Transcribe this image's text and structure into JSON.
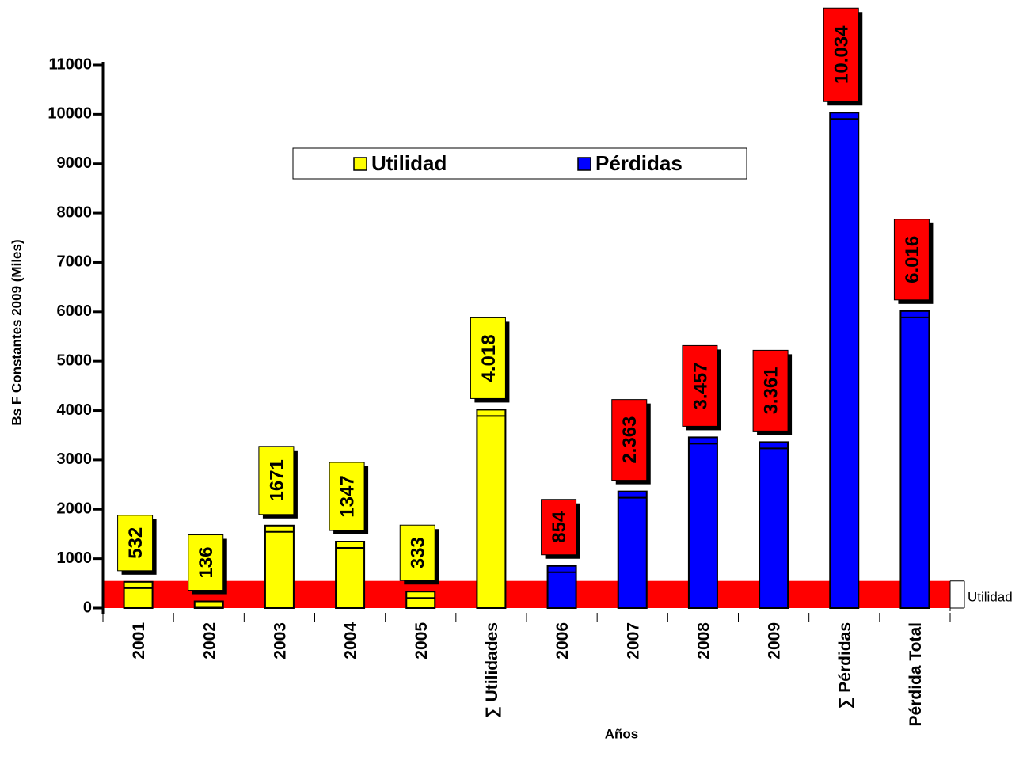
{
  "chart_data": {
    "type": "bar",
    "y_label": "Bs F Constantes 2009 (Miles)",
    "x_label": "Años",
    "categories": [
      "2001",
      "2002",
      "2003",
      "2004",
      "2005",
      "∑ Utilidades",
      "2006",
      "2007",
      "2008",
      "2009",
      "∑ Pérdidas",
      "Pérdida Total"
    ],
    "series": [
      {
        "name": "Utilidad",
        "color": "#ffff00",
        "label_color": "#ffff00",
        "values": [
          532,
          136,
          1671,
          1347,
          333,
          4018,
          null,
          null,
          null,
          null,
          null,
          null
        ],
        "value_labels": [
          "532",
          "136",
          "1671",
          "1347",
          "333",
          "4.018",
          null,
          null,
          null,
          null,
          null,
          null
        ]
      },
      {
        "name": "Pérdidas",
        "color": "#0000ff",
        "label_color": "#ff0000",
        "values": [
          null,
          null,
          null,
          null,
          null,
          null,
          854,
          2363,
          3457,
          3361,
          10034,
          6016
        ],
        "value_labels": [
          null,
          null,
          null,
          null,
          null,
          null,
          "854",
          "2.363",
          "3.457",
          "3.361",
          "10.034",
          "6.016"
        ]
      }
    ],
    "reference_band": {
      "label": "Utilidad",
      "from": 0,
      "to": 550,
      "color": "#ff0000"
    },
    "ylim": [
      0,
      11000
    ],
    "yticks": [
      0,
      1000,
      2000,
      3000,
      4000,
      5000,
      6000,
      7000,
      8000,
      9000,
      10000,
      11000
    ],
    "grid": false,
    "legend": "top"
  }
}
